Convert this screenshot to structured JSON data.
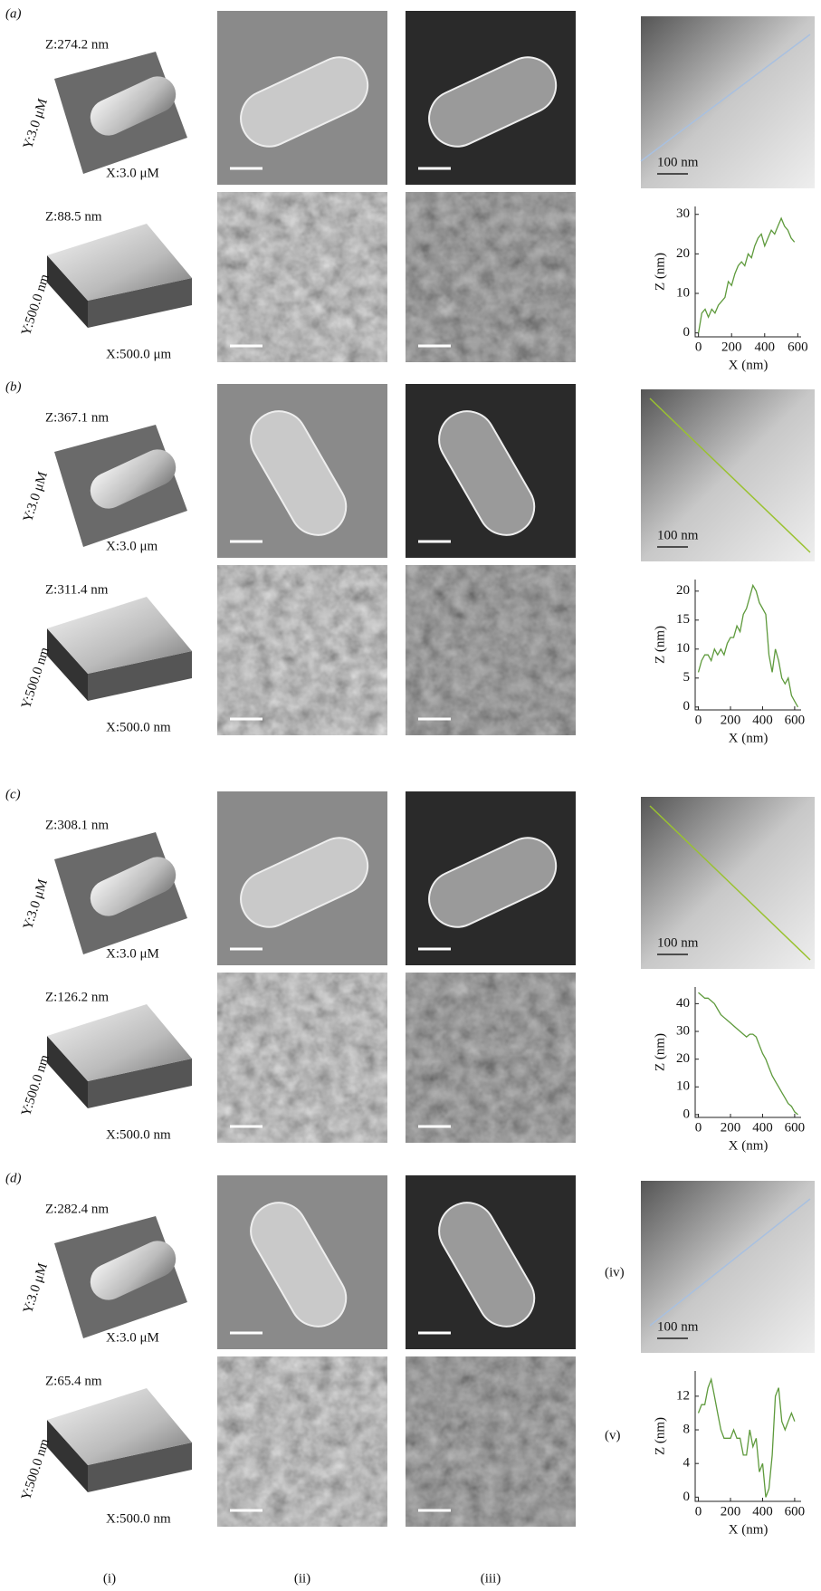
{
  "panels": [
    {
      "label": "(a)",
      "images_3d": [
        {
          "z": "Z:274.2 nm",
          "y": "Y:3.0 μM",
          "x": "X:3.0 μM"
        },
        {
          "z": "Z:88.5 nm",
          "y": "Y:500.0 nm",
          "x": "X:500.0 μm"
        }
      ],
      "scale_bar": "100 nm"
    },
    {
      "label": "(b)",
      "images_3d": [
        {
          "z": "Z:367.1 nm",
          "y": "Y:3.0 μM",
          "x": "X:3.0 μm"
        },
        {
          "z": "Z:311.4 nm",
          "y": "Y:500.0 nm",
          "x": "X:500.0 nm"
        }
      ],
      "scale_bar": "100 nm"
    },
    {
      "label": "(c)",
      "images_3d": [
        {
          "z": "Z:308.1 nm",
          "y": "Y:3.0 μM",
          "x": "X:3.0 μM"
        },
        {
          "z": "Z:126.2 nm",
          "y": "Y:500.0 nm",
          "x": "X:500.0 nm"
        }
      ],
      "scale_bar": "100 nm"
    },
    {
      "label": "(d)",
      "images_3d": [
        {
          "z": "Z:282.4 nm",
          "y": "Y:3.0 μM",
          "x": "X:3.0 μM"
        },
        {
          "z": "Z:65.4 nm",
          "y": "Y:500.0 nm",
          "x": "X:500.0 nm"
        }
      ],
      "scale_bar": "100 nm",
      "row_labels": [
        "(iv)",
        "(v)"
      ]
    }
  ],
  "columns": [
    "(i)",
    "(ii)",
    "(iii)"
  ],
  "chart_data": [
    {
      "type": "line",
      "x_label": "X (nm)",
      "y_label": "Z (nm)",
      "color": "#5e9a3c",
      "xlim": [
        -20,
        620
      ],
      "ylim": [
        -1,
        32
      ],
      "xticks": [
        0,
        200,
        400,
        600
      ],
      "yticks": [
        0,
        10,
        20,
        30
      ],
      "x": [
        0,
        20,
        40,
        60,
        80,
        100,
        120,
        140,
        160,
        180,
        200,
        220,
        240,
        260,
        280,
        300,
        320,
        340,
        360,
        380,
        400,
        420,
        440,
        460,
        480,
        500,
        520,
        540,
        560,
        580
      ],
      "values": [
        0,
        5,
        6,
        4,
        6,
        5,
        7,
        8,
        9,
        13,
        12,
        15,
        17,
        18,
        17,
        20,
        19,
        22,
        24,
        25,
        22,
        24,
        26,
        25,
        27,
        29,
        27,
        26,
        24,
        23
      ]
    },
    {
      "type": "line",
      "x_label": "X (nm)",
      "y_label": "Z (nm)",
      "color": "#5e9a3c",
      "xlim": [
        -20,
        640
      ],
      "ylim": [
        -0.5,
        22
      ],
      "xticks": [
        0,
        200,
        400,
        600
      ],
      "yticks": [
        0,
        5,
        10,
        15,
        20
      ],
      "x": [
        0,
        20,
        40,
        60,
        80,
        100,
        120,
        140,
        160,
        180,
        200,
        220,
        240,
        260,
        280,
        300,
        320,
        340,
        360,
        380,
        400,
        420,
        440,
        460,
        480,
        500,
        520,
        540,
        560,
        580,
        600,
        620
      ],
      "values": [
        6,
        8,
        9,
        9,
        8,
        10,
        9,
        10,
        9,
        11,
        12,
        12,
        14,
        13,
        16,
        17,
        19,
        21,
        20,
        18,
        17,
        16,
        9,
        6,
        10,
        8,
        5,
        4,
        5,
        2,
        1,
        0
      ]
    },
    {
      "type": "line",
      "x_label": "X (nm)",
      "y_label": "Z (nm)",
      "color": "#5e9a3c",
      "xlim": [
        -20,
        640
      ],
      "ylim": [
        -1,
        46
      ],
      "xticks": [
        0,
        200,
        400,
        600
      ],
      "yticks": [
        0,
        10,
        20,
        30,
        40
      ],
      "x": [
        0,
        20,
        40,
        60,
        80,
        100,
        120,
        140,
        160,
        180,
        200,
        220,
        240,
        260,
        280,
        300,
        320,
        340,
        360,
        380,
        400,
        420,
        440,
        460,
        480,
        500,
        520,
        540,
        560,
        580,
        600,
        620
      ],
      "values": [
        44,
        43,
        42,
        42,
        41,
        40,
        38,
        36,
        35,
        34,
        33,
        32,
        31,
        30,
        29,
        28,
        29,
        29,
        28,
        25,
        22,
        20,
        17,
        14,
        12,
        10,
        8,
        6,
        4,
        3,
        1,
        0
      ]
    },
    {
      "type": "line",
      "x_label": "X (nm)",
      "y_label": "Z (nm)",
      "color": "#5e9a3c",
      "xlim": [
        -20,
        640
      ],
      "ylim": [
        -0.5,
        15
      ],
      "xticks": [
        0,
        200,
        400,
        600
      ],
      "yticks": [
        0,
        4,
        8,
        12
      ],
      "x": [
        0,
        20,
        40,
        60,
        80,
        100,
        120,
        140,
        160,
        180,
        200,
        220,
        240,
        260,
        280,
        300,
        320,
        340,
        360,
        380,
        400,
        420,
        440,
        460,
        480,
        500,
        520,
        540,
        560,
        580,
        600
      ],
      "values": [
        10,
        11,
        11,
        13,
        14,
        12,
        10,
        8,
        7,
        7,
        7,
        8,
        7,
        7,
        5,
        5,
        8,
        6,
        7,
        3,
        4,
        0,
        1,
        5,
        12,
        13,
        9,
        8,
        9,
        10,
        9
      ]
    }
  ]
}
